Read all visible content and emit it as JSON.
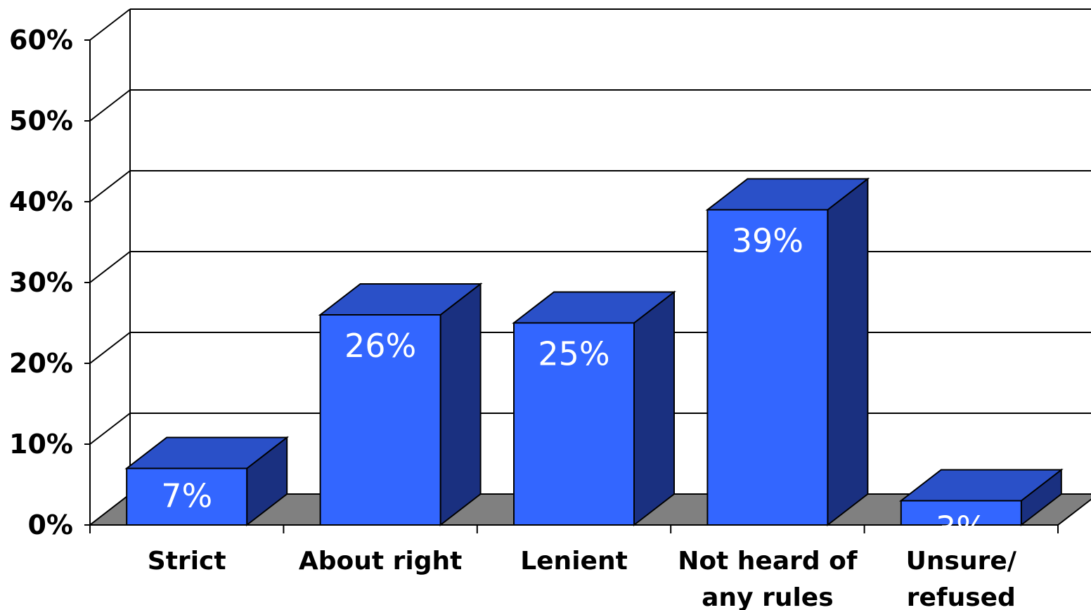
{
  "chart_data": {
    "type": "bar",
    "three_d": true,
    "categories": [
      [
        "Strict"
      ],
      [
        "About right"
      ],
      [
        "Lenient"
      ],
      [
        "Not heard of",
        "any rules"
      ],
      [
        "Unsure/",
        "refused"
      ]
    ],
    "values": [
      7,
      26,
      25,
      39,
      3
    ],
    "data_labels": [
      "7%",
      "26%",
      "25%",
      "39%",
      "3%"
    ],
    "y_ticks": [
      "0%",
      "10%",
      "20%",
      "30%",
      "40%",
      "50%",
      "60%"
    ],
    "ylim": [
      0,
      60
    ],
    "grid": true,
    "legend": "none",
    "title": "",
    "xlabel": "",
    "ylabel": "",
    "colors": {
      "bar_front": "#3366ff",
      "bar_top": "#2a50c8",
      "bar_side": "#1a3080",
      "floor": "#808080"
    }
  }
}
